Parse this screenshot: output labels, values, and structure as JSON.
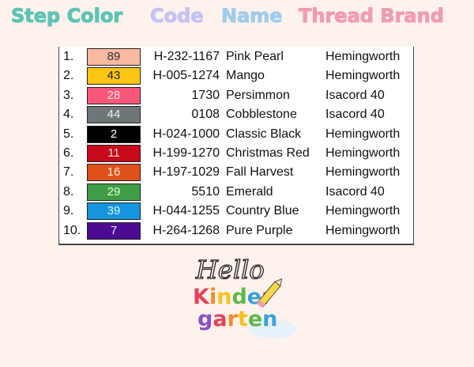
{
  "headers": [
    {
      "label": "Step Color",
      "color": "#5cc4b4"
    },
    {
      "label": "Code",
      "color": "#c5c3f3"
    },
    {
      "label": "Name",
      "color": "#9fcdee"
    },
    {
      "label": "Thread Brand",
      "color": "#f19db0"
    }
  ],
  "rows": [
    {
      "step": "1.",
      "color_num": "89",
      "swatch": "#f9b9a0",
      "text": "#333",
      "code": "H-232-1167",
      "name": "Pink Pearl",
      "brand": "Hemingworth"
    },
    {
      "step": "2.",
      "color_num": "43",
      "swatch": "#fdc614",
      "text": "#222",
      "code": "H-005-1274",
      "name": "Mango",
      "brand": "Hemingworth"
    },
    {
      "step": "3.",
      "color_num": "28",
      "swatch": "#f7587a",
      "text": "#fde",
      "code": "1730",
      "name": "Persimmon",
      "brand": "Isacord 40"
    },
    {
      "step": "4.",
      "color_num": "44",
      "swatch": "#6f7679",
      "text": "#eee",
      "code": "0108",
      "name": "Cobblestone",
      "brand": "Isacord 40"
    },
    {
      "step": "5.",
      "color_num": "2",
      "swatch": "#000000",
      "text": "#fff",
      "code": "H-024-1000",
      "name": "Classic Black",
      "brand": "Hemingworth"
    },
    {
      "step": "6.",
      "color_num": "11",
      "swatch": "#c8091c",
      "text": "#fdd",
      "code": "H-199-1270",
      "name": "Christmas Red",
      "brand": "Hemingworth"
    },
    {
      "step": "7.",
      "color_num": "16",
      "swatch": "#e0501c",
      "text": "#fed",
      "code": "H-197-1029",
      "name": "Fall Harvest",
      "brand": "Hemingworth"
    },
    {
      "step": "8.",
      "color_num": "29",
      "swatch": "#3f9e45",
      "text": "#dfd",
      "code": "5510",
      "name": "Emerald",
      "brand": "Isacord 40"
    },
    {
      "step": "9.",
      "color_num": "39",
      "swatch": "#1495de",
      "text": "#def",
      "code": "H-044-1255",
      "name": "Country Blue",
      "brand": "Hemingworth"
    },
    {
      "step": "10.",
      "color_num": "7",
      "swatch": "#4d0b94",
      "text": "#edf",
      "code": "H-264-1268",
      "name": "Pure Purple",
      "brand": "Hemingworth"
    }
  ],
  "logo": {
    "line1": "Hello",
    "line2": "Kinder",
    "line3": "garten"
  }
}
